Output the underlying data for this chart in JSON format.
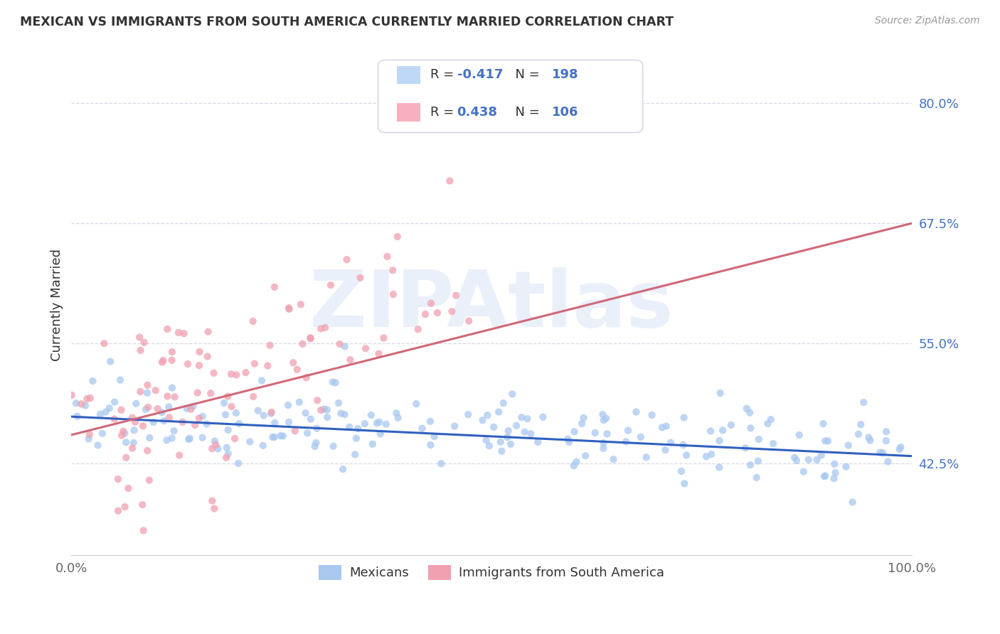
{
  "title": "MEXICAN VS IMMIGRANTS FROM SOUTH AMERICA CURRENTLY MARRIED CORRELATION CHART",
  "source": "Source: ZipAtlas.com",
  "ylabel": "Currently Married",
  "watermark": "ZIPAtlas",
  "xlim": [
    0.0,
    1.0
  ],
  "ylim": [
    0.33,
    0.85
  ],
  "ytick_vals": [
    0.425,
    0.55,
    0.675,
    0.8
  ],
  "ytick_labels": [
    "42.5%",
    "55.0%",
    "67.5%",
    "80.0%"
  ],
  "xtick_vals": [
    0.0,
    0.25,
    0.5,
    0.75,
    1.0
  ],
  "xtick_labels": [
    "0.0%",
    "",
    "",
    "",
    "100.0%"
  ],
  "legend_labels_bottom": [
    "Mexicans",
    "Immigrants from South America"
  ],
  "blue_color": "#a8c8f0",
  "pink_color": "#f0a0b0",
  "blue_line_color": "#3060c0",
  "pink_line_color": "#d06878",
  "blue_N": 198,
  "pink_N": 106,
  "blue_seed": 42,
  "pink_seed": 123,
  "legend_R_blue": "-0.417",
  "legend_N_blue": "198",
  "legend_R_pink": "0.438",
  "legend_N_pink": "106",
  "legend_box_color_blue": "#c0d8f8",
  "legend_box_color_pink": "#f8b0c0",
  "text_color_blue": "#4472c4",
  "text_color_dark": "#333333",
  "text_color_source": "#999999",
  "grid_color": "#d8d8e8",
  "spine_color": "#cccccc",
  "ytick_color": "#4472c4",
  "xtick_color": "#666666"
}
